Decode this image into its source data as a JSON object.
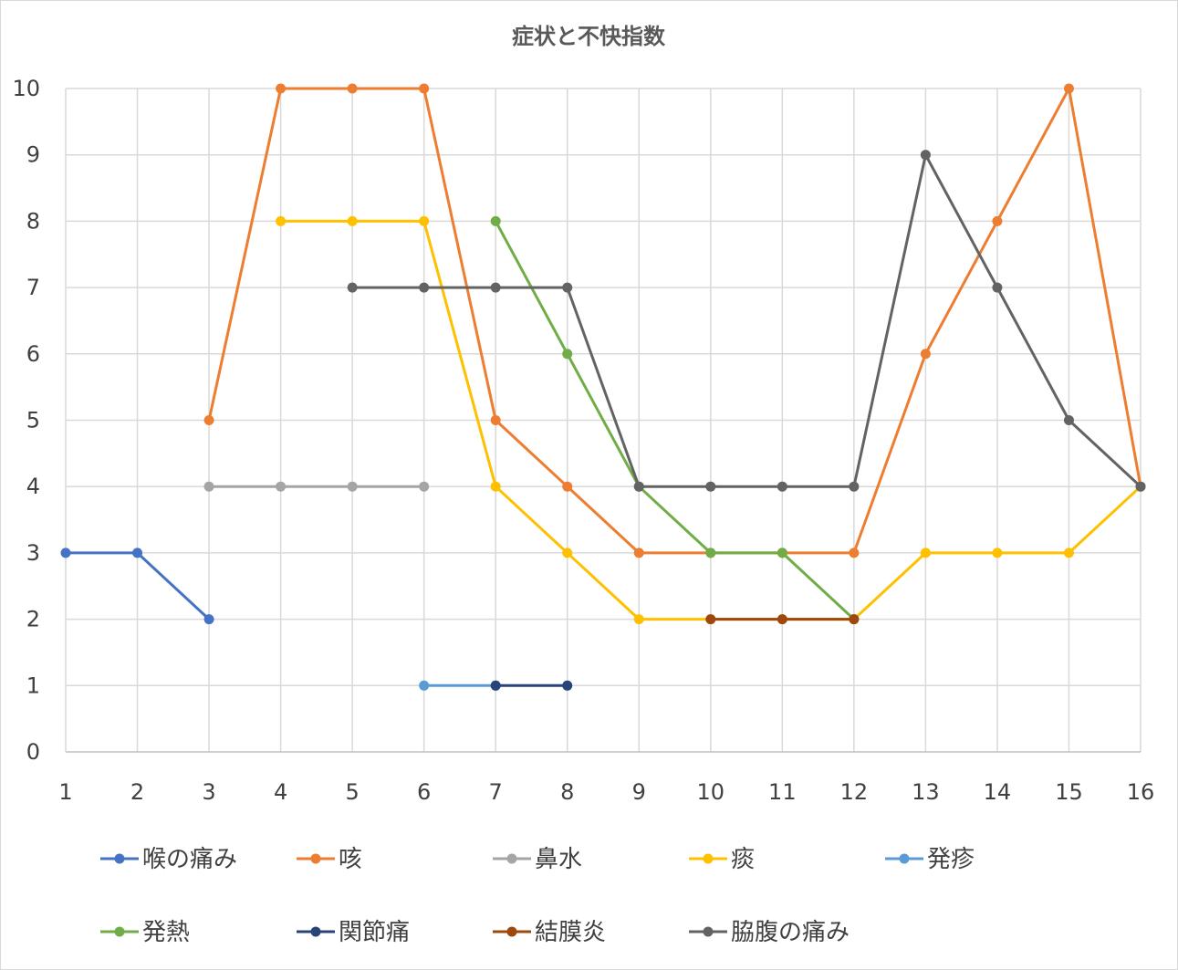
{
  "chart_data": {
    "type": "line",
    "title": "症状と不快指数",
    "xlabel": "",
    "ylabel": "",
    "categories": [
      "1",
      "2",
      "3",
      "4",
      "5",
      "6",
      "7",
      "8",
      "9",
      "10",
      "11",
      "12",
      "13",
      "14",
      "15",
      "16"
    ],
    "ylim": [
      0,
      10
    ],
    "yticks": [
      0,
      1,
      2,
      3,
      4,
      5,
      6,
      7,
      8,
      9,
      10
    ],
    "grid": true,
    "legend_position": "bottom",
    "series": [
      {
        "name": "喉の痛み",
        "color": "#4472c4",
        "values": [
          3,
          3,
          2,
          null,
          null,
          null,
          null,
          null,
          null,
          null,
          null,
          null,
          null,
          null,
          null,
          null
        ]
      },
      {
        "name": "咳",
        "color": "#ed7d31",
        "values": [
          null,
          null,
          5,
          10,
          10,
          10,
          5,
          4,
          3,
          3,
          3,
          3,
          6,
          8,
          10,
          4
        ]
      },
      {
        "name": "鼻水",
        "color": "#a5a5a5",
        "values": [
          null,
          null,
          4,
          4,
          4,
          4,
          null,
          null,
          null,
          null,
          null,
          null,
          null,
          null,
          null,
          null
        ]
      },
      {
        "name": "痰",
        "color": "#ffc000",
        "values": [
          null,
          null,
          null,
          8,
          8,
          8,
          4,
          3,
          2,
          2,
          2,
          2,
          3,
          3,
          3,
          4
        ]
      },
      {
        "name": "発疹",
        "color": "#5b9bd5",
        "values": [
          null,
          null,
          null,
          null,
          null,
          1,
          1,
          null,
          null,
          null,
          null,
          null,
          null,
          null,
          null,
          null
        ]
      },
      {
        "name": "発熱",
        "color": "#70ad47",
        "values": [
          null,
          null,
          null,
          null,
          null,
          null,
          8,
          6,
          4,
          3,
          3,
          2,
          null,
          null,
          null,
          null
        ]
      },
      {
        "name": "関節痛",
        "color": "#264478",
        "values": [
          null,
          null,
          null,
          null,
          null,
          null,
          1,
          1,
          null,
          null,
          null,
          null,
          null,
          null,
          null,
          null
        ]
      },
      {
        "name": "結膜炎",
        "color": "#9e480e",
        "values": [
          null,
          null,
          null,
          null,
          null,
          null,
          null,
          null,
          null,
          2,
          2,
          2,
          null,
          null,
          null,
          null
        ]
      },
      {
        "name": "脇腹の痛み",
        "color": "#636363",
        "values": [
          null,
          null,
          null,
          null,
          7,
          7,
          7,
          7,
          4,
          4,
          4,
          4,
          9,
          7,
          5,
          4
        ]
      }
    ]
  }
}
